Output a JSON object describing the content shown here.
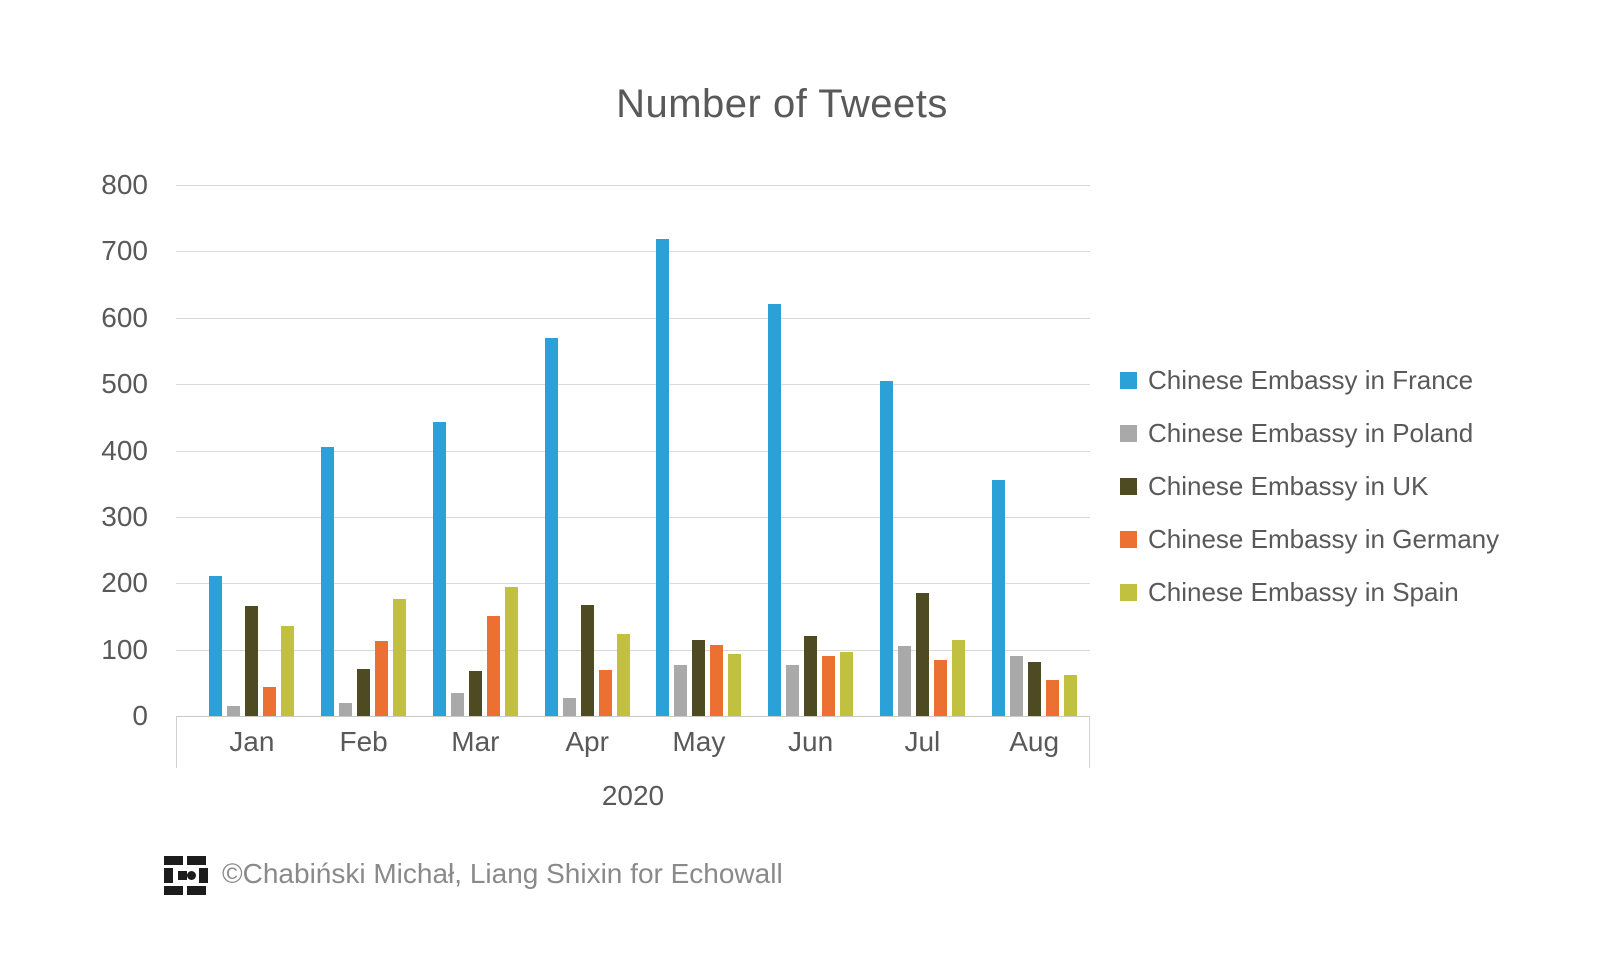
{
  "title": "Number of Tweets",
  "chart_data": {
    "type": "bar",
    "categories": [
      "Jan",
      "Feb",
      "Mar",
      "Apr",
      "May",
      "Jun",
      "Jul",
      "Aug"
    ],
    "x_group_label": "2020",
    "ylim": [
      0,
      800
    ],
    "yticks": [
      0,
      100,
      200,
      300,
      400,
      500,
      600,
      700,
      800
    ],
    "grid": "horizontal",
    "legend_position": "right",
    "series": [
      {
        "name": "Chinese Embassy in France",
        "color": "#2aa2d8",
        "values": [
          211,
          406,
          443,
          570,
          718,
          621,
          505,
          355
        ]
      },
      {
        "name": "Chinese Embassy in Poland",
        "color": "#a9a9a9",
        "values": [
          15,
          19,
          35,
          27,
          77,
          77,
          106,
          91
        ]
      },
      {
        "name": "Chinese Embassy in UK",
        "color": "#4e4a21",
        "values": [
          166,
          71,
          68,
          168,
          114,
          120,
          186,
          81
        ]
      },
      {
        "name": "Chinese Embassy in Germany",
        "color": "#ec7031",
        "values": [
          43,
          113,
          150,
          69,
          107,
          90,
          85,
          54
        ]
      },
      {
        "name": "Chinese Embassy in Spain",
        "color": "#c1c13f",
        "values": [
          135,
          176,
          194,
          123,
          94,
          96,
          115,
          62
        ]
      }
    ]
  },
  "footer": {
    "credit": "©Chabiński Michał, Liang Shixin for Echowall",
    "logo": "echowall-logo"
  }
}
